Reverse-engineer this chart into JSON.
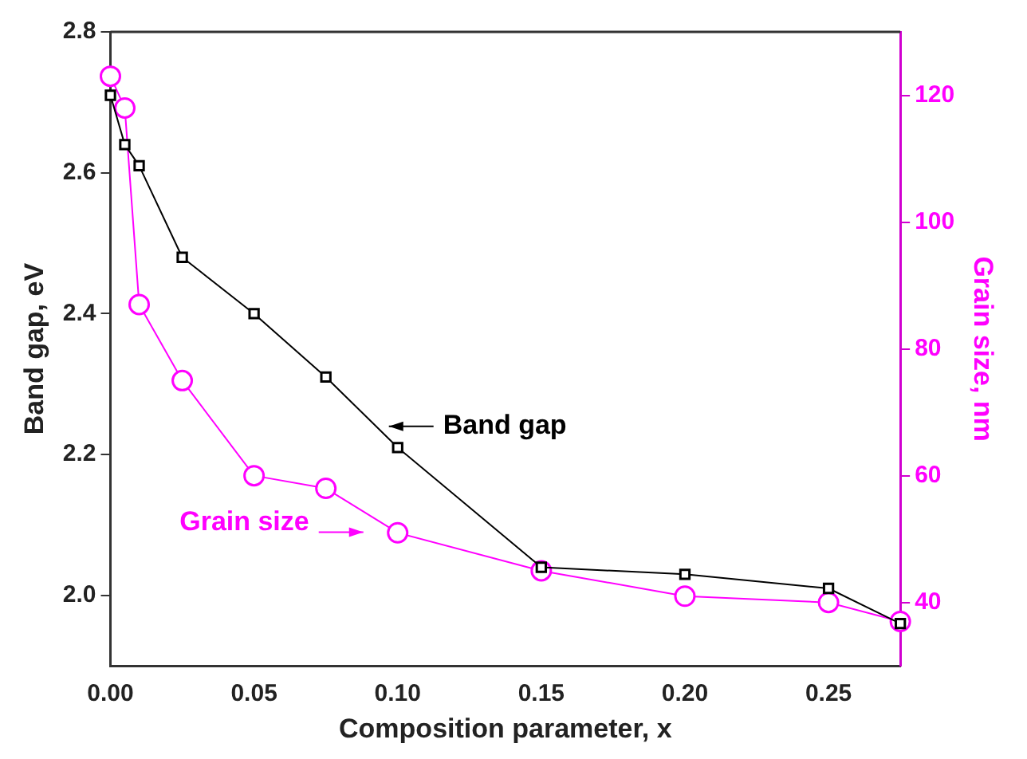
{
  "chart_data": {
    "type": "line",
    "xlabel": "Composition parameter, x",
    "ylabel": "Band gap, eV",
    "y2label": "Grain size, nm",
    "x": [
      0,
      0.005,
      0.01,
      0.025,
      0.05,
      0.075,
      0.1,
      0.15,
      0.2,
      0.25,
      0.275
    ],
    "series": [
      {
        "name": "Band gap",
        "color": "#000000",
        "marker": "square",
        "values": [
          2.71,
          2.64,
          2.61,
          2.48,
          2.4,
          2.31,
          2.21,
          2.04,
          2.03,
          2.01,
          1.96
        ]
      },
      {
        "name": "Grain size",
        "color": "#ff00ff",
        "marker": "circle",
        "axis": "y2",
        "values": [
          123,
          118,
          87,
          75,
          60,
          58,
          51,
          45,
          41,
          40,
          37
        ]
      }
    ],
    "xlim": [
      0,
      0.275
    ],
    "xticks": [
      {
        "value": 0,
        "label": "0.00"
      },
      {
        "value": 0.05,
        "label": "0.05"
      },
      {
        "value": 0.1,
        "label": "0.10"
      },
      {
        "value": 0.15,
        "label": "0.15"
      },
      {
        "value": 0.2,
        "label": "0.20"
      },
      {
        "value": 0.25,
        "label": "0.25"
      }
    ],
    "ylim": [
      1.9,
      2.8
    ],
    "yticks": [
      {
        "value": 2,
        "label": "2.0"
      },
      {
        "value": 2.2,
        "label": "2.2"
      },
      {
        "value": 2.4,
        "label": "2.4"
      },
      {
        "value": 2.6,
        "label": "2.6"
      },
      {
        "value": 2.8,
        "label": "2.8"
      }
    ],
    "y2lim": [
      30,
      130
    ],
    "y2ticks": [
      40,
      60,
      80,
      100,
      120
    ],
    "grid": false
  }
}
